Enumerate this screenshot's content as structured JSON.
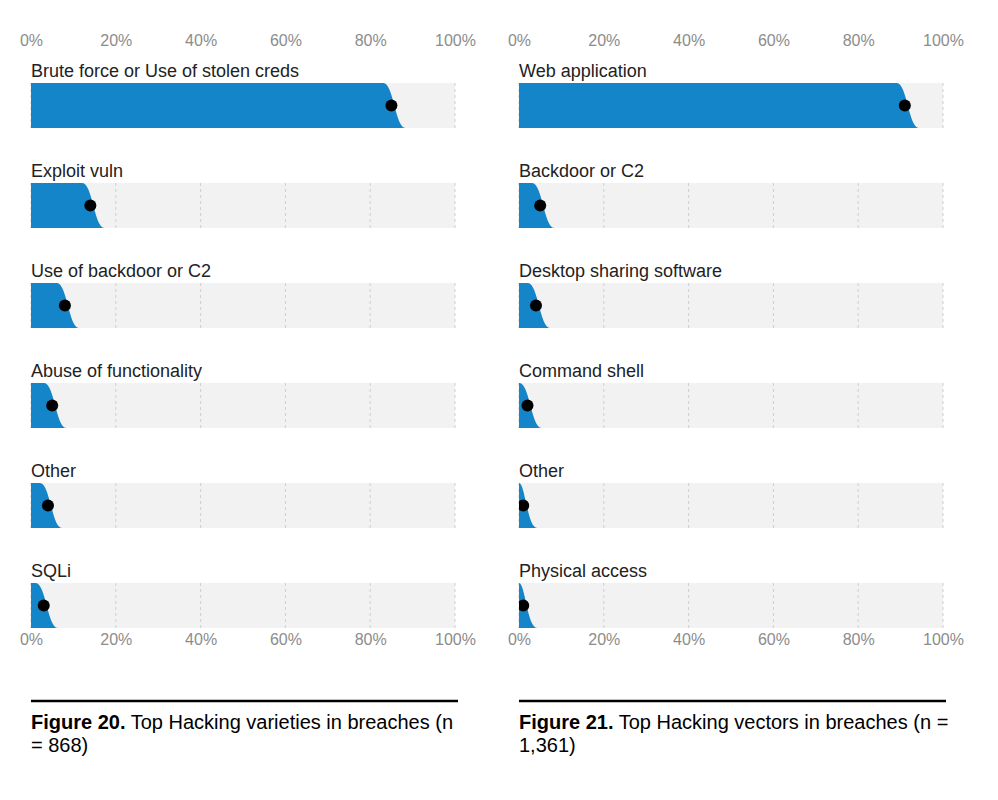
{
  "chart_data": [
    {
      "type": "bar",
      "orientation": "horizontal",
      "title": "Figure 20. Top Hacking varieties in breaches (n = 868)",
      "categories": [
        "Brute force or Use of stolen creds",
        "Exploit vuln",
        "Use of backdoor or C2",
        "Abuse of functionality",
        "Other",
        "SQLi"
      ],
      "values": [
        85,
        14,
        8,
        5,
        4,
        3
      ],
      "color": "#1485c8",
      "marker": "circle",
      "xlim": [
        0,
        100
      ],
      "xticks": [
        {
          "value": 0,
          "label": "0%"
        },
        {
          "value": 20,
          "label": "20%"
        },
        {
          "value": 40,
          "label": "40%"
        },
        {
          "value": 60,
          "label": "60%"
        },
        {
          "value": 80,
          "label": "80%"
        },
        {
          "value": 100,
          "label": "100%"
        }
      ],
      "grid": true
    },
    {
      "type": "bar",
      "orientation": "horizontal",
      "title": "Figure 21. Top Hacking vectors in breaches (n = 1,361)",
      "categories": [
        "Web application",
        "Backdoor or C2",
        "Desktop sharing software",
        "Command shell",
        "Other",
        "Physical access"
      ],
      "values": [
        91,
        5,
        4,
        2,
        1,
        1
      ],
      "color": "#1485c8",
      "marker": "circle",
      "xlim": [
        0,
        100
      ],
      "xticks": [
        {
          "value": 0,
          "label": "0%"
        },
        {
          "value": 20,
          "label": "20%"
        },
        {
          "value": 40,
          "label": "40%"
        },
        {
          "value": 60,
          "label": "60%"
        },
        {
          "value": 80,
          "label": "80%"
        },
        {
          "value": 100,
          "label": "100%"
        }
      ],
      "grid": true
    }
  ]
}
